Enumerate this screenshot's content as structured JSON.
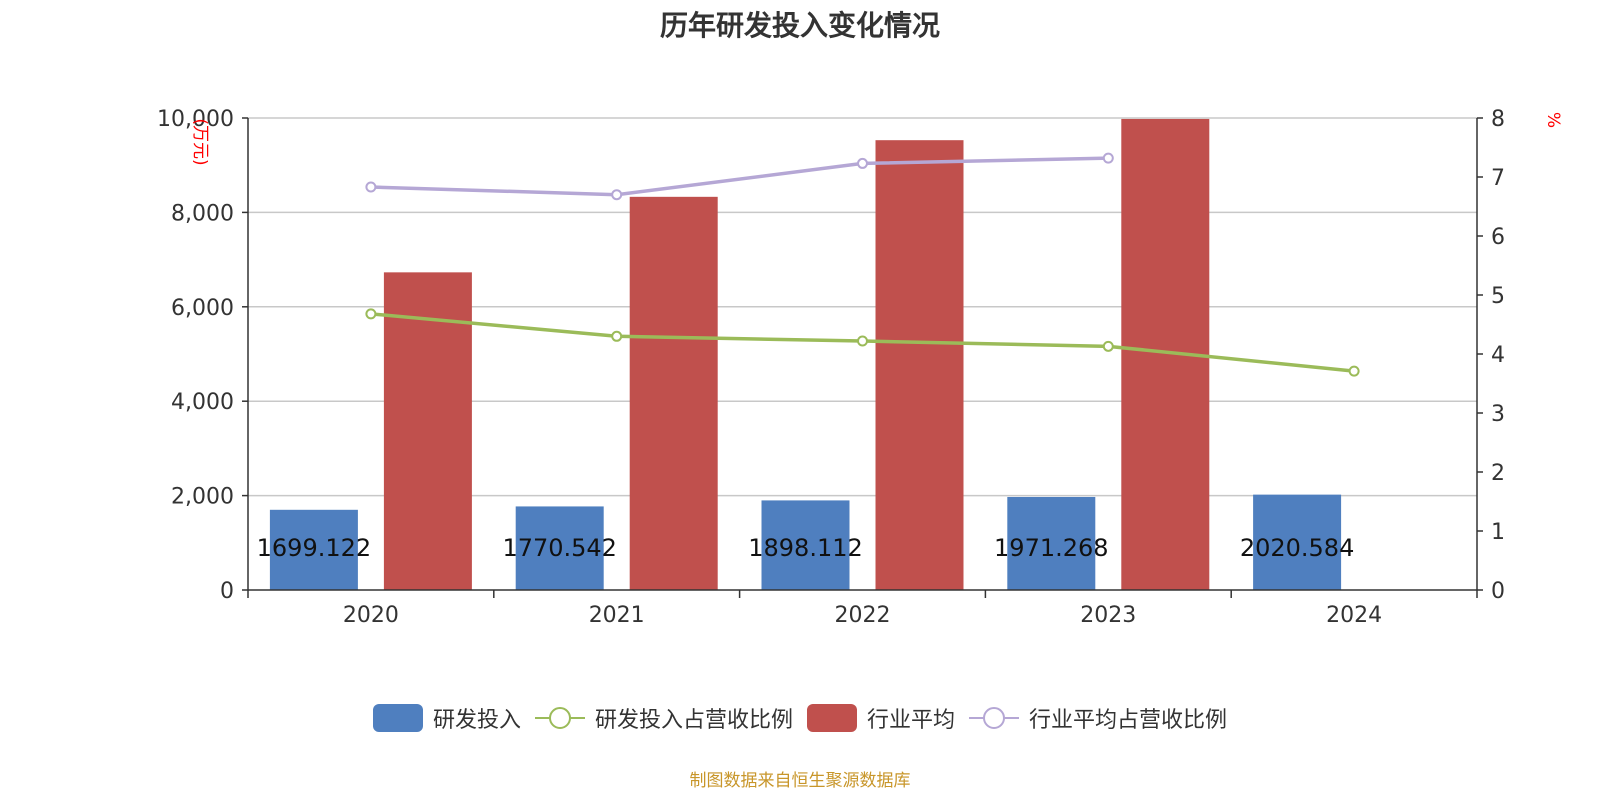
{
  "title": "历年研发投入变化情况",
  "source": "制图数据来自恒生聚源数据库",
  "colors": {
    "rd": "#4f7fbf",
    "industry": "#c0504d",
    "rd_ratio": "#9bbb59",
    "industry_ratio": "#b5a7d5",
    "grid": "#c8c8c8",
    "axis": "#333333",
    "unit": "#ff0000"
  },
  "chart_data": {
    "type": "bar",
    "categories": [
      "2020",
      "2021",
      "2022",
      "2023",
      "2024"
    ],
    "y_left": {
      "label": "(万元)",
      "range": [
        0,
        10000
      ],
      "ticks": [
        0,
        2000,
        4000,
        6000,
        8000,
        10000
      ],
      "tick_labels": [
        "0",
        "2,000",
        "4,000",
        "6,000",
        "8,000",
        "10,000"
      ]
    },
    "y_right": {
      "label": "%",
      "range": [
        0,
        8
      ],
      "ticks": [
        0,
        1,
        2,
        3,
        4,
        5,
        6,
        7,
        8
      ],
      "tick_labels": [
        "0",
        "1",
        "2",
        "3",
        "4",
        "5",
        "6",
        "7",
        "8"
      ]
    },
    "grid": true,
    "legend_position": "bottom-center",
    "series": [
      {
        "name": "研发投入",
        "type": "bar",
        "axis": "left",
        "values": [
          1699.122,
          1770.542,
          1898.112,
          1971.268,
          2020.584
        ],
        "labels": [
          "1699.122",
          "1770.542",
          "1898.112",
          "1971.268",
          "2020.584"
        ]
      },
      {
        "name": "研发投入占营收比例",
        "type": "line",
        "axis": "right",
        "values": [
          4.68,
          4.3,
          4.22,
          4.13,
          3.71
        ]
      },
      {
        "name": "行业平均",
        "type": "bar",
        "axis": "left",
        "values": [
          6730,
          8330,
          9530,
          9980,
          null
        ]
      },
      {
        "name": "行业平均占营收比例",
        "type": "line",
        "axis": "right",
        "values": [
          6.83,
          6.7,
          7.23,
          7.32,
          null
        ]
      }
    ]
  }
}
